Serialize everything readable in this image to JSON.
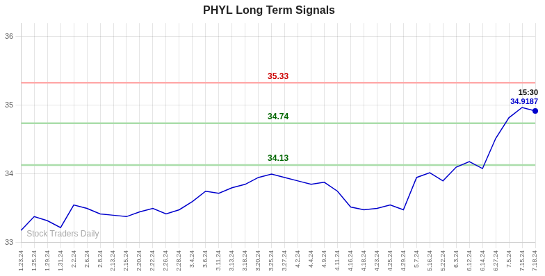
{
  "chart_data": {
    "type": "line",
    "title": "PHYL Long Term Signals",
    "color": "#0000cc",
    "categories": [
      "1.23.24",
      "1.25.24",
      "1.29.24",
      "1.31.24",
      "2.2.24",
      "2.6.24",
      "2.8.24",
      "2.13.24",
      "2.15.24",
      "2.20.24",
      "2.22.24",
      "2.26.24",
      "2.28.24",
      "3.4.24",
      "3.6.24",
      "3.11.24",
      "3.13.24",
      "3.18.24",
      "3.20.24",
      "3.25.24",
      "3.27.24",
      "4.2.24",
      "4.4.24",
      "4.9.24",
      "4.11.24",
      "4.16.24",
      "4.18.24",
      "4.23.24",
      "4.25.24",
      "4.29.24",
      "5.7.24",
      "5.16.24",
      "5.22.24",
      "6.3.24",
      "6.12.24",
      "6.14.24",
      "6.27.24",
      "7.5.24",
      "7.15.24",
      "7.18.24"
    ],
    "values": [
      33.18,
      33.38,
      33.32,
      33.22,
      33.55,
      33.5,
      33.42,
      33.4,
      33.38,
      33.45,
      33.5,
      33.42,
      33.48,
      33.6,
      33.75,
      33.72,
      33.8,
      33.85,
      33.95,
      34.0,
      33.95,
      33.9,
      33.85,
      33.88,
      33.75,
      33.52,
      33.48,
      33.5,
      33.55,
      33.48,
      33.95,
      34.02,
      33.9,
      34.1,
      34.18,
      34.08,
      34.52,
      34.82,
      34.97,
      34.9187
    ],
    "ylim": [
      33.0,
      36.2
    ],
    "yticks": [
      33,
      34,
      35,
      36
    ],
    "grid": true,
    "hlines": [
      {
        "value": 35.33,
        "label": "35.33",
        "color": "#ffaaaa",
        "label_color": "#cc0000"
      },
      {
        "value": 34.74,
        "label": "34.74",
        "color": "#aaddaa",
        "label_color": "#006600"
      },
      {
        "value": 34.13,
        "label": "34.13",
        "color": "#aaddaa",
        "label_color": "#006600"
      }
    ],
    "annotation": {
      "value": 34.9187,
      "texts": [
        "15:30",
        "34.9187"
      ],
      "colors": [
        "#000000",
        "#0000cc"
      ],
      "marker_color": "#0000cc"
    },
    "watermark": "Stock Traders Daily",
    "watermark_color": "#aaaaaa"
  }
}
